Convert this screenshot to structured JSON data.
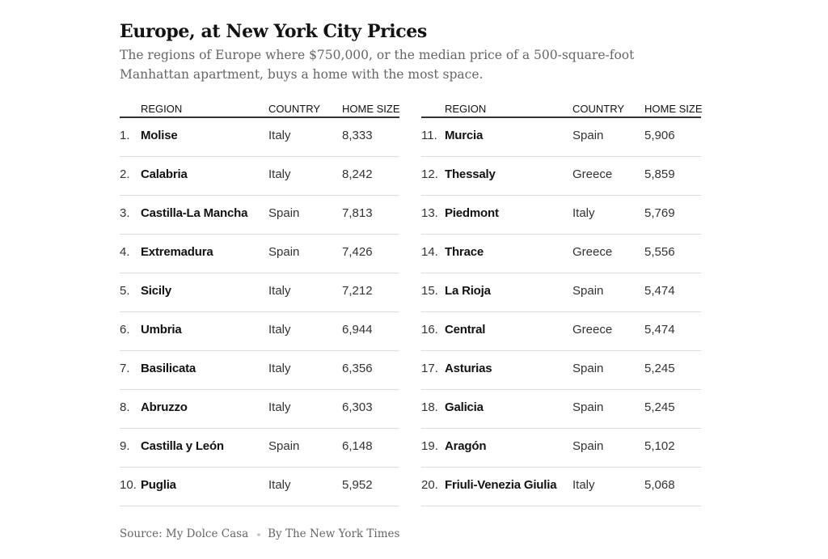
{
  "title": "Europe, at New York City Prices",
  "subtitle": "The regions of Europe where $750,000, or the median price of a 500-square-foot Manhattan apartment, buys a home with the most space.",
  "columns": {
    "region": "REGION",
    "country": "COUNTRY",
    "home_size": "HOME SIZE"
  },
  "rows_left": [
    {
      "rank": "1.",
      "region": "Molise",
      "country": "Italy",
      "home_size": "8,333"
    },
    {
      "rank": "2.",
      "region": "Calabria",
      "country": "Italy",
      "home_size": "8,242"
    },
    {
      "rank": "3.",
      "region": "Castilla-La Mancha",
      "country": "Spain",
      "home_size": "7,813"
    },
    {
      "rank": "4.",
      "region": "Extremadura",
      "country": "Spain",
      "home_size": "7,426"
    },
    {
      "rank": "5.",
      "region": "Sicily",
      "country": "Italy",
      "home_size": "7,212"
    },
    {
      "rank": "6.",
      "region": "Umbria",
      "country": "Italy",
      "home_size": "6,944"
    },
    {
      "rank": "7.",
      "region": "Basilicata",
      "country": "Italy",
      "home_size": "6,356"
    },
    {
      "rank": "8.",
      "region": "Abruzzo",
      "country": "Italy",
      "home_size": "6,303"
    },
    {
      "rank": "9.",
      "region": "Castilla y León",
      "country": "Spain",
      "home_size": "6,148"
    },
    {
      "rank": "10.",
      "region": "Puglia",
      "country": "Italy",
      "home_size": "5,952"
    }
  ],
  "rows_right": [
    {
      "rank": "11.",
      "region": "Murcia",
      "country": "Spain",
      "home_size": "5,906"
    },
    {
      "rank": "12.",
      "region": "Thessaly",
      "country": "Greece",
      "home_size": "5,859"
    },
    {
      "rank": "13.",
      "region": "Piedmont",
      "country": "Italy",
      "home_size": "5,769"
    },
    {
      "rank": "14.",
      "region": "Thrace",
      "country": "Greece",
      "home_size": "5,556"
    },
    {
      "rank": "15.",
      "region": "La Rioja",
      "country": "Spain",
      "home_size": "5,474"
    },
    {
      "rank": "16.",
      "region": "Central",
      "country": "Greece",
      "home_size": "5,474"
    },
    {
      "rank": "17.",
      "region": "Asturias",
      "country": "Spain",
      "home_size": "5,245"
    },
    {
      "rank": "18.",
      "region": "Galicia",
      "country": "Spain",
      "home_size": "5,245"
    },
    {
      "rank": "19.",
      "region": "Aragón",
      "country": "Spain",
      "home_size": "5,102"
    },
    {
      "rank": "20.",
      "region": "Friuli-Venezia Giulia",
      "country": "Italy",
      "home_size": "5,068"
    }
  ],
  "credit": {
    "source": "Source: My Dolce Casa",
    "byline": "By The New York Times"
  }
}
